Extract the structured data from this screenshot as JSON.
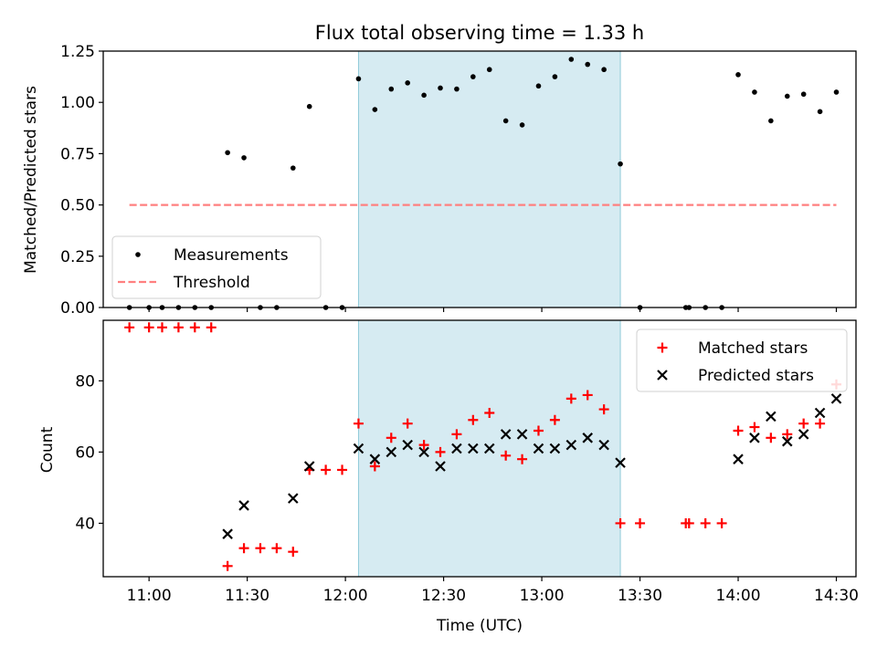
{
  "chart_data": [
    {
      "type": "scatter",
      "title": "Flux total observing time = 1.33 h",
      "xlabel": "",
      "ylabel": "Matched/Predicted stars",
      "ylim": [
        0,
        1.25
      ],
      "yticks": [
        "0.00",
        "0.25",
        "0.50",
        "0.75",
        "1.00",
        "1.25"
      ],
      "xlim": [
        "10:46",
        "14:36"
      ],
      "shaded_span": [
        "12:04",
        "13:24"
      ],
      "legend_position": "lower-left",
      "series": [
        {
          "name": "Measurements",
          "marker": "dot",
          "color": "#000000",
          "points": [
            [
              "10:54",
              0
            ],
            [
              "11:00",
              0
            ],
            [
              "11:04",
              0
            ],
            [
              "11:09",
              0
            ],
            [
              "11:14",
              0
            ],
            [
              "11:19",
              0
            ],
            [
              "11:24",
              0.755
            ],
            [
              "11:29",
              0.73
            ],
            [
              "11:34",
              0
            ],
            [
              "11:39",
              0
            ],
            [
              "11:44",
              0.68
            ],
            [
              "11:49",
              0.98
            ],
            [
              "11:54",
              0
            ],
            [
              "11:59",
              0
            ],
            [
              "12:04",
              1.115
            ],
            [
              "12:09",
              0.965
            ],
            [
              "12:14",
              1.065
            ],
            [
              "12:19",
              1.095
            ],
            [
              "12:24",
              1.035
            ],
            [
              "12:29",
              1.07
            ],
            [
              "12:34",
              1.065
            ],
            [
              "12:39",
              1.125
            ],
            [
              "12:44",
              1.16
            ],
            [
              "12:49",
              0.91
            ],
            [
              "12:54",
              0.89
            ],
            [
              "12:59",
              1.08
            ],
            [
              "13:04",
              1.125
            ],
            [
              "13:09",
              1.21
            ],
            [
              "13:14",
              1.185
            ],
            [
              "13:19",
              1.16
            ],
            [
              "13:24",
              0.7
            ],
            [
              "13:30",
              0
            ],
            [
              "13:44",
              0
            ],
            [
              "13:45",
              0
            ],
            [
              "13:50",
              0
            ],
            [
              "13:55",
              0
            ],
            [
              "14:00",
              1.135
            ],
            [
              "14:05",
              1.05
            ],
            [
              "14:10",
              0.91
            ],
            [
              "14:15",
              1.03
            ],
            [
              "14:20",
              1.04
            ],
            [
              "14:25",
              0.955
            ],
            [
              "14:30",
              1.05
            ]
          ]
        },
        {
          "name": "Threshold",
          "marker": "dashed-line",
          "color": "#ff7f7f",
          "points": [
            [
              "10:54",
              0.5
            ],
            [
              "14:30",
              0.5
            ]
          ]
        }
      ]
    },
    {
      "type": "scatter",
      "title": "",
      "xlabel": "Time (UTC)",
      "ylabel": "Count",
      "ylim": [
        25,
        97
      ],
      "yticks": [
        "40",
        "60",
        "80"
      ],
      "xticks": [
        "11:00",
        "11:30",
        "12:00",
        "12:30",
        "13:00",
        "13:30",
        "14:00",
        "14:30"
      ],
      "xlim": [
        "10:46",
        "14:36"
      ],
      "shaded_span": [
        "12:04",
        "13:24"
      ],
      "legend_position": "top-right",
      "series": [
        {
          "name": "Matched stars",
          "marker": "plus",
          "color": "#ff0000",
          "points": [
            [
              "10:54",
              95
            ],
            [
              "11:00",
              95
            ],
            [
              "11:04",
              95
            ],
            [
              "11:09",
              95
            ],
            [
              "11:14",
              95
            ],
            [
              "11:19",
              95
            ],
            [
              "11:24",
              28
            ],
            [
              "11:29",
              33
            ],
            [
              "11:34",
              33
            ],
            [
              "11:39",
              33
            ],
            [
              "11:44",
              32
            ],
            [
              "11:49",
              55
            ],
            [
              "11:54",
              55
            ],
            [
              "11:59",
              55
            ],
            [
              "12:04",
              68
            ],
            [
              "12:09",
              56
            ],
            [
              "12:14",
              64
            ],
            [
              "12:19",
              68
            ],
            [
              "12:24",
              62
            ],
            [
              "12:29",
              60
            ],
            [
              "12:34",
              65
            ],
            [
              "12:39",
              69
            ],
            [
              "12:44",
              71
            ],
            [
              "12:49",
              59
            ],
            [
              "12:54",
              58
            ],
            [
              "12:59",
              66
            ],
            [
              "13:04",
              69
            ],
            [
              "13:09",
              75
            ],
            [
              "13:14",
              76
            ],
            [
              "13:19",
              72
            ],
            [
              "13:24",
              40
            ],
            [
              "13:30",
              40
            ],
            [
              "13:44",
              40
            ],
            [
              "13:45",
              40
            ],
            [
              "13:50",
              40
            ],
            [
              "13:55",
              40
            ],
            [
              "14:00",
              66
            ],
            [
              "14:05",
              67
            ],
            [
              "14:10",
              64
            ],
            [
              "14:15",
              65
            ],
            [
              "14:20",
              68
            ],
            [
              "14:25",
              68
            ],
            [
              "14:30",
              79
            ]
          ]
        },
        {
          "name": "Predicted stars",
          "marker": "x",
          "color": "#000000",
          "points": [
            [
              "11:24",
              37
            ],
            [
              "11:29",
              45
            ],
            [
              "11:44",
              47
            ],
            [
              "11:49",
              56
            ],
            [
              "12:04",
              61
            ],
            [
              "12:09",
              58
            ],
            [
              "12:14",
              60
            ],
            [
              "12:19",
              62
            ],
            [
              "12:24",
              60
            ],
            [
              "12:29",
              56
            ],
            [
              "12:34",
              61
            ],
            [
              "12:39",
              61
            ],
            [
              "12:44",
              61
            ],
            [
              "12:49",
              65
            ],
            [
              "12:54",
              65
            ],
            [
              "12:59",
              61
            ],
            [
              "13:04",
              61
            ],
            [
              "13:09",
              62
            ],
            [
              "13:14",
              64
            ],
            [
              "13:19",
              62
            ],
            [
              "13:24",
              57
            ],
            [
              "14:00",
              58
            ],
            [
              "14:05",
              64
            ],
            [
              "14:10",
              70
            ],
            [
              "14:15",
              63
            ],
            [
              "14:20",
              65
            ],
            [
              "14:25",
              71
            ],
            [
              "14:30",
              75
            ]
          ]
        }
      ]
    }
  ]
}
